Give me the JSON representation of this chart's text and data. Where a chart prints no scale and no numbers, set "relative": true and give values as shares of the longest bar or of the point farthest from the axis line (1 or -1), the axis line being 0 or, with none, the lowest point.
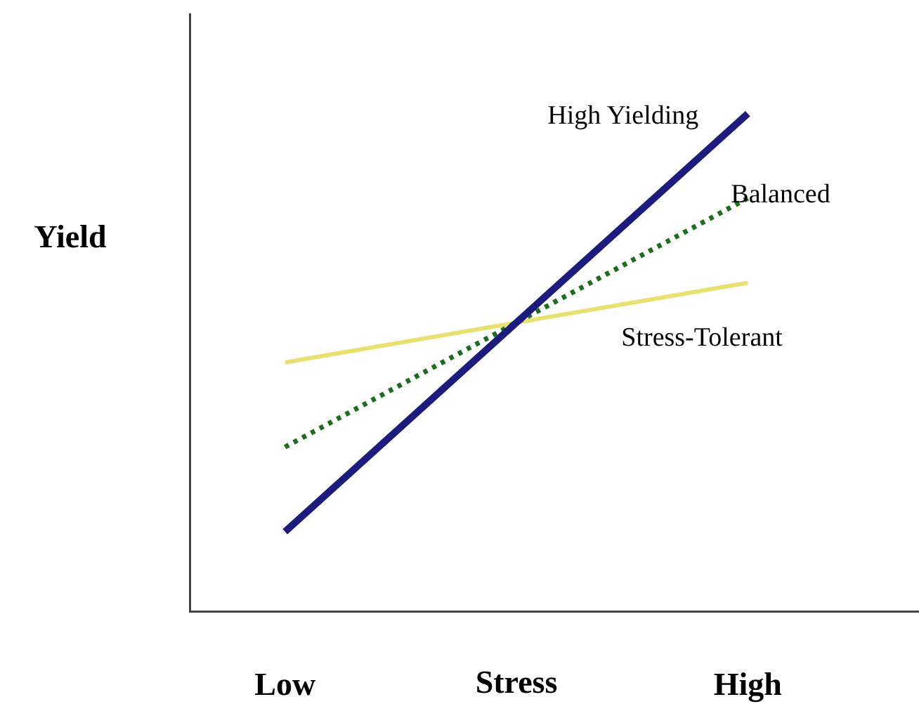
{
  "chart_data": {
    "type": "line",
    "relative": true,
    "xlabel": "Stress",
    "ylabel": "Yield",
    "categories": [
      "Low",
      "High"
    ],
    "grid": false,
    "legend": false,
    "marker": "none",
    "series": [
      {
        "name": "High Yielding",
        "color": "#1c1c7c",
        "values": [
          0.16,
          1
        ],
        "line_style": "solid"
      },
      {
        "name": "Balanced",
        "color": "#1f6b1f",
        "values": [
          0.33,
          0.83
        ],
        "line_style": "dotted"
      },
      {
        "name": "Stress-Tolerant",
        "color": "#e8e070",
        "values": [
          0.5,
          0.66
        ],
        "line_style": "solid"
      }
    ]
  }
}
